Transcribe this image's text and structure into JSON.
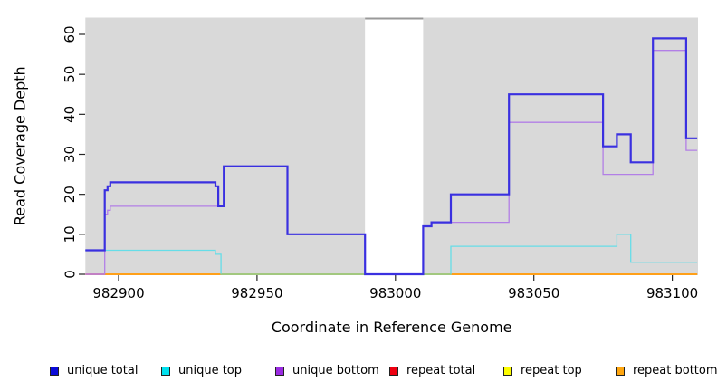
{
  "chart_data": {
    "type": "line",
    "subtype": "step-coverage-plot",
    "title": "",
    "xlabel": "Coordinate in Reference Genome",
    "ylabel": "Read Coverage Depth",
    "xlim": [
      982888,
      983109
    ],
    "ylim": [
      0,
      64
    ],
    "xticks": [
      982900,
      982950,
      983000,
      983050,
      983100
    ],
    "yticks": [
      0,
      10,
      20,
      30,
      40,
      50,
      60
    ],
    "grid": false,
    "plot_bg": "#d9d9d9",
    "tick_color": "#262626",
    "masked_region": {
      "from": 982989,
      "to": 983010,
      "color": "#ffffff",
      "top_border_color": "#999999"
    },
    "series": [
      {
        "name": "repeat total",
        "color": "#e00010",
        "width": 1.3,
        "points": [
          [
            982888,
            0
          ],
          [
            983109,
            0
          ]
        ]
      },
      {
        "name": "repeat top",
        "color": "#f5f500",
        "width": 1.3,
        "points": [
          [
            982888,
            0
          ],
          [
            983109,
            0
          ]
        ]
      },
      {
        "name": "repeat bottom",
        "color": "#ffa019",
        "width": 2,
        "points": [
          [
            982895,
            0
          ],
          [
            983109,
            0
          ]
        ]
      },
      {
        "name": "unique top",
        "color": "#66dde8",
        "width": 1.3,
        "points": [
          [
            982888,
            6
          ],
          [
            982935,
            5
          ],
          [
            982937,
            0
          ],
          [
            983020,
            7
          ],
          [
            983080,
            10
          ],
          [
            983085,
            3
          ],
          [
            983109,
            3
          ]
        ]
      },
      {
        "name": "unique bottom",
        "color": "#b27fe6",
        "width": 1.3,
        "points": [
          [
            982888,
            0
          ],
          [
            982895,
            15
          ],
          [
            982896,
            16
          ],
          [
            982897,
            17
          ],
          [
            982938,
            27
          ],
          [
            982961,
            10
          ],
          [
            982989,
            0
          ],
          [
            983010,
            12
          ],
          [
            983013,
            13
          ],
          [
            983041,
            38
          ],
          [
            983075,
            25
          ],
          [
            983093,
            56
          ],
          [
            983105,
            31
          ],
          [
            983109,
            31
          ]
        ]
      },
      {
        "name": "unique total",
        "color": "#3a30e0",
        "width": 2.2,
        "points": [
          [
            982888,
            6
          ],
          [
            982895,
            21
          ],
          [
            982896,
            22
          ],
          [
            982897,
            23
          ],
          [
            982935,
            22
          ],
          [
            982936,
            17
          ],
          [
            982938,
            27
          ],
          [
            982961,
            10
          ],
          [
            982989,
            0
          ],
          [
            983010,
            12
          ],
          [
            983013,
            13
          ],
          [
            983020,
            20
          ],
          [
            983041,
            45
          ],
          [
            983075,
            32
          ],
          [
            983080,
            35
          ],
          [
            983085,
            28
          ],
          [
            983093,
            59
          ],
          [
            983105,
            34
          ],
          [
            983109,
            34
          ]
        ]
      }
    ],
    "baseline_overlaps": [
      {
        "from": 982888,
        "to": 982895,
        "value": 0,
        "color": "#d84f9e",
        "width": 1.4
      },
      {
        "from": 982937,
        "to": 982989,
        "value": 0,
        "color": "#90cf90",
        "width": 1.4
      },
      {
        "from": 983010,
        "to": 983020,
        "value": 0,
        "color": "#90cf90",
        "width": 1.4
      }
    ],
    "legend": [
      {
        "label": "unique total",
        "color": "#0b0bd8"
      },
      {
        "label": "unique top",
        "color": "#00e0ee"
      },
      {
        "label": "unique bottom",
        "color": "#9a2be2"
      },
      {
        "label": "repeat total",
        "color": "#ee0011"
      },
      {
        "label": "repeat top",
        "color": "#fcfc00"
      },
      {
        "label": "repeat bottom",
        "color": "#ffa60f"
      }
    ],
    "legend_position": "bottom"
  }
}
